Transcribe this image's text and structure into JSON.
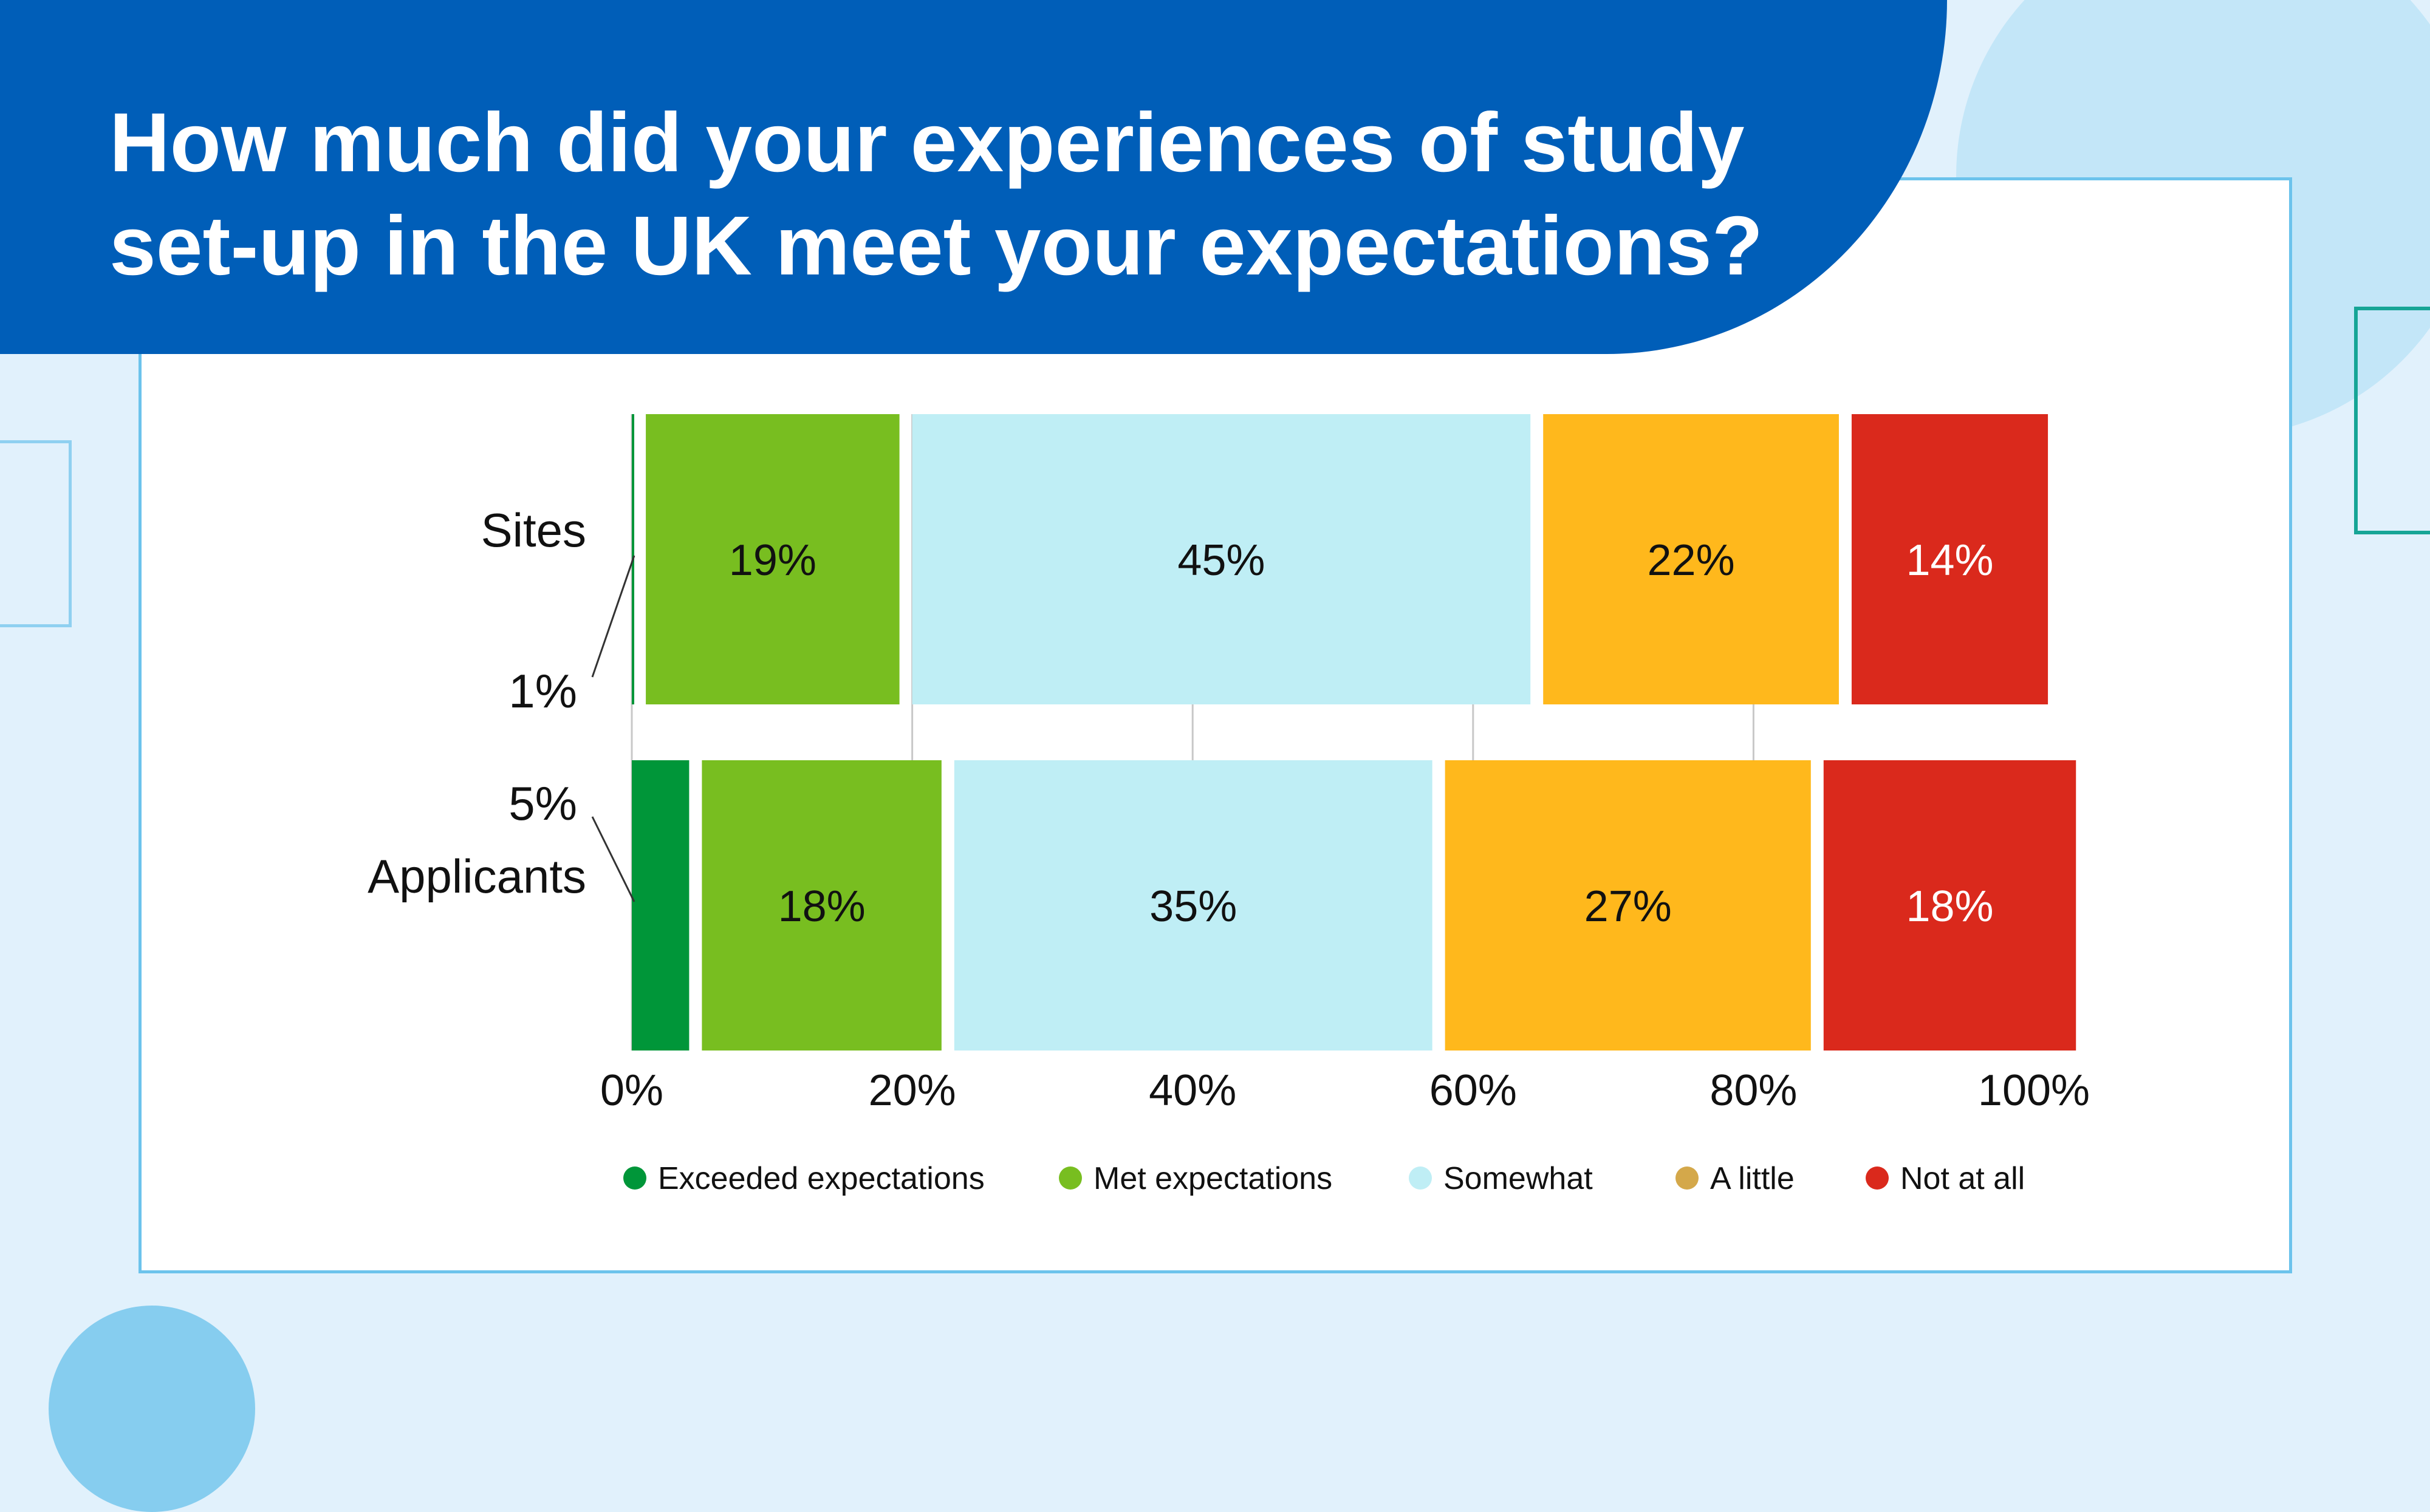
{
  "page": {
    "title": "How much did your experiences of study set-up in the UK meet your expectations?"
  },
  "colors": {
    "background": "#e1f1fc",
    "banner": "#005eb8",
    "card_border": "#6cc3ec"
  },
  "chart_data": {
    "type": "bar",
    "orientation": "horizontal",
    "stacked": true,
    "title": "How much did your experiences of study set-up in the UK meet your expectations?",
    "categories": [
      "Sites",
      "Applicants"
    ],
    "series": [
      {
        "name": "Exceeded expectations",
        "color": "#009639",
        "legend_color": "#009639",
        "label_color": "#111111",
        "values": [
          1,
          5
        ],
        "labels": [
          "1%",
          "5%"
        ]
      },
      {
        "name": "Met expectations",
        "color": "#78be20",
        "legend_color": "#78be20",
        "label_color": "#111111",
        "values": [
          19,
          18
        ],
        "labels": [
          "19%",
          "18%"
        ]
      },
      {
        "name": "Somewhat",
        "color": "#bfeef5",
        "legend_color": "#bfeef5",
        "label_color": "#111111",
        "values": [
          45,
          35
        ],
        "labels": [
          "45%",
          "35%"
        ]
      },
      {
        "name": "A little",
        "color": "#ffb81c",
        "legend_color": "#d4a84a",
        "label_color": "#111111",
        "values": [
          22,
          27
        ],
        "labels": [
          "22%",
          "27%"
        ]
      },
      {
        "name": "Not at all",
        "color": "#da291c",
        "legend_color": "#da291c",
        "label_color": "#ffffff",
        "values": [
          14,
          18
        ],
        "labels": [
          "14%",
          "18%"
        ]
      }
    ],
    "xlim": [
      0,
      100
    ],
    "ticks": [
      {
        "value": 0,
        "label": "0%"
      },
      {
        "value": 20,
        "label": "20%"
      },
      {
        "value": 40,
        "label": "40%"
      },
      {
        "value": 60,
        "label": "60%"
      },
      {
        "value": 80,
        "label": "80%"
      },
      {
        "value": 100,
        "label": "100%"
      }
    ],
    "gridlines": true,
    "legend_position": "bottom",
    "xlabel": "",
    "ylabel": ""
  }
}
